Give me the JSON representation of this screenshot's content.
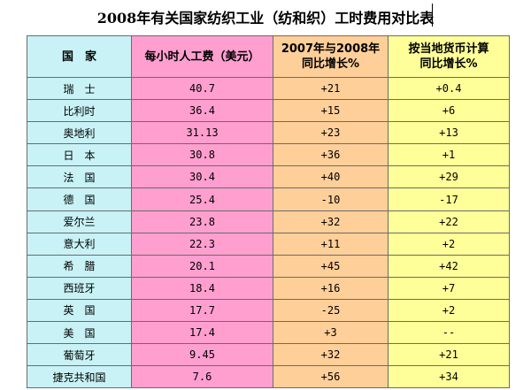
{
  "title": "2008年有关国家纺织工业（纺和织）工时费用对比表",
  "headers": {
    "country": "国　家",
    "cost": "每小时人工费（美元）",
    "yoy_line1": "2007年与2008年",
    "yoy_line2": "同比增长%",
    "local_line1": "按当地货币计算",
    "local_line2": "同比增长%"
  },
  "rows": [
    {
      "country": "瑞　士",
      "cost": "40.7",
      "yoy": "+21",
      "local": "+0.4"
    },
    {
      "country": "比利时",
      "cost": "36.4",
      "yoy": "+15",
      "local": "+6"
    },
    {
      "country": "奥地利",
      "cost": "31.13",
      "yoy": "+23",
      "local": "+13"
    },
    {
      "country": "日　本",
      "cost": "30.8",
      "yoy": "+36",
      "local": "+1"
    },
    {
      "country": "法　国",
      "cost": "30.4",
      "yoy": "+40",
      "local": "+29"
    },
    {
      "country": "德　国",
      "cost": "25.4",
      "yoy": "-10",
      "local": "-17"
    },
    {
      "country": "爱尔兰",
      "cost": "23.8",
      "yoy": "+32",
      "local": "+22"
    },
    {
      "country": "意大利",
      "cost": "22.3",
      "yoy": "+11",
      "local": "+2"
    },
    {
      "country": "希　腊",
      "cost": "20.1",
      "yoy": "+45",
      "local": "+42"
    },
    {
      "country": "西班牙",
      "cost": "18.4",
      "yoy": "+16",
      "local": "+7"
    },
    {
      "country": "英　国",
      "cost": "17.7",
      "yoy": "-25",
      "local": "+2"
    },
    {
      "country": "美　国",
      "cost": "17.4",
      "yoy": "+3",
      "local": "--"
    },
    {
      "country": "葡萄牙",
      "cost": "9.45",
      "yoy": "+32",
      "local": "+21"
    },
    {
      "country": "捷克共和国",
      "cost": "7.6",
      "yoy": "+56",
      "local": "+34"
    }
  ]
}
